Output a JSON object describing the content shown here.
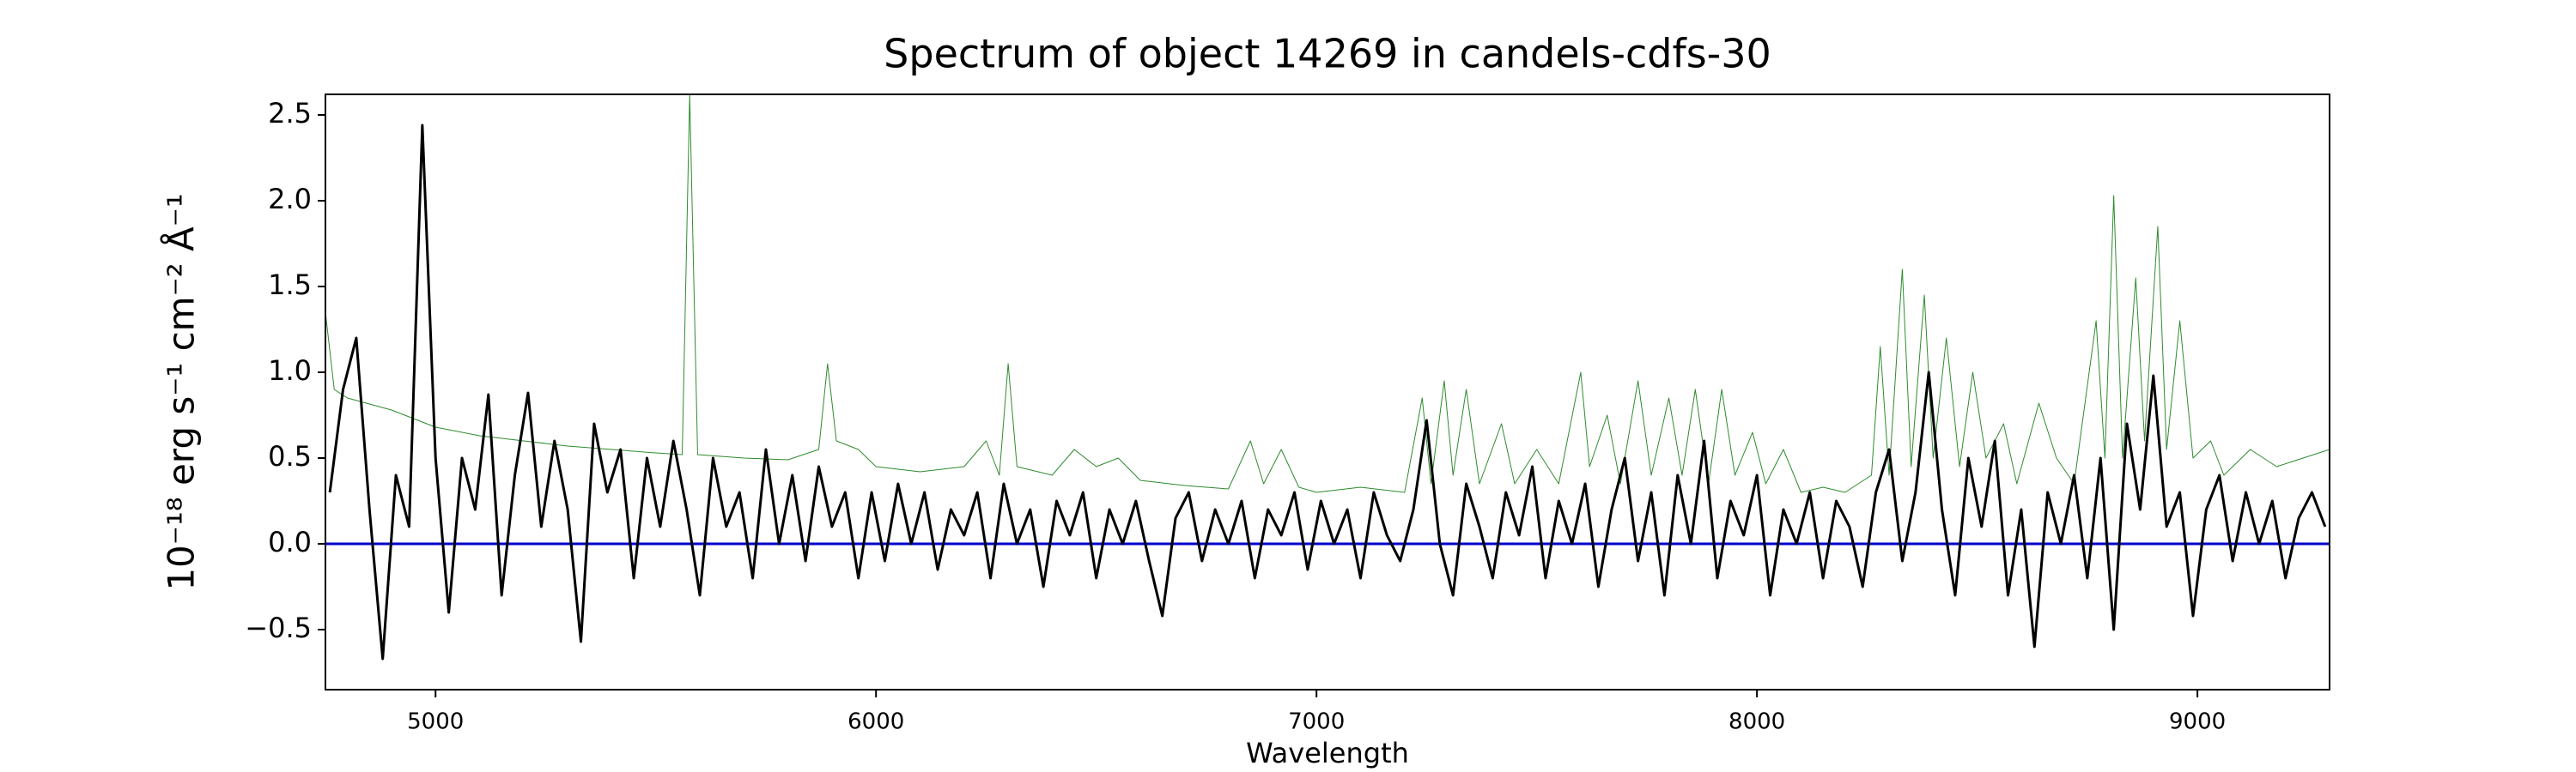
{
  "chart_data": {
    "type": "line",
    "title": "Spectrum of object 14269 in candels-cdfs-30",
    "xlabel": "Wavelength",
    "ylabel": "10⁻¹⁸ erg s⁻¹ cm⁻² Å⁻¹",
    "xlim": [
      4750,
      9300
    ],
    "ylim": [
      -0.85,
      2.62
    ],
    "xticks": [
      5000,
      6000,
      7000,
      8000,
      9000
    ],
    "yticks": [
      {
        "value": -0.5,
        "label": "−0.5"
      },
      {
        "value": 0,
        "label": "0.0"
      },
      {
        "value": 0.5,
        "label": "0.5"
      },
      {
        "value": 1,
        "label": "1.0"
      },
      {
        "value": 1.5,
        "label": "1.5"
      },
      {
        "value": 2,
        "label": "2.0"
      },
      {
        "value": 2.5,
        "label": "2.5"
      }
    ],
    "grid": false,
    "series": [
      {
        "color": "#2e8b2e",
        "width": 1,
        "x": [
          4750,
          4770,
          4800,
          4900,
          5000,
          5100,
          5200,
          5300,
          5400,
          5500,
          5560,
          5577,
          5595,
          5700,
          5800,
          5870,
          5890,
          5910,
          5960,
          6000,
          6100,
          6200,
          6250,
          6280,
          6300,
          6320,
          6400,
          6450,
          6500,
          6550,
          6600,
          6700,
          6800,
          6850,
          6880,
          6920,
          6960,
          7000,
          7100,
          7200,
          7240,
          7260,
          7290,
          7310,
          7340,
          7370,
          7420,
          7450,
          7500,
          7550,
          7600,
          7620,
          7660,
          7690,
          7730,
          7760,
          7800,
          7830,
          7860,
          7890,
          7920,
          7950,
          7990,
          8020,
          8060,
          8100,
          8150,
          8200,
          8260,
          8280,
          8300,
          8330,
          8350,
          8380,
          8400,
          8430,
          8460,
          8490,
          8520,
          8560,
          8590,
          8640,
          8680,
          8720,
          8770,
          8790,
          8810,
          8830,
          8860,
          8880,
          8910,
          8930,
          8960,
          8990,
          9030,
          9060,
          9120,
          9180,
          9240,
          9300
        ],
        "values": [
          1.35,
          0.9,
          0.85,
          0.78,
          0.68,
          0.63,
          0.6,
          0.57,
          0.55,
          0.53,
          0.52,
          2.62,
          0.52,
          0.5,
          0.49,
          0.55,
          1.05,
          0.6,
          0.55,
          0.45,
          0.42,
          0.45,
          0.6,
          0.4,
          1.05,
          0.45,
          0.4,
          0.55,
          0.45,
          0.5,
          0.37,
          0.34,
          0.32,
          0.6,
          0.35,
          0.55,
          0.33,
          0.3,
          0.33,
          0.3,
          0.85,
          0.35,
          0.95,
          0.4,
          0.9,
          0.35,
          0.7,
          0.35,
          0.55,
          0.35,
          1.0,
          0.45,
          0.75,
          0.35,
          0.95,
          0.4,
          0.85,
          0.4,
          0.9,
          0.35,
          0.9,
          0.4,
          0.65,
          0.35,
          0.55,
          0.3,
          0.33,
          0.3,
          0.4,
          1.15,
          0.4,
          1.6,
          0.45,
          1.45,
          0.5,
          1.2,
          0.45,
          1.0,
          0.5,
          0.7,
          0.35,
          0.82,
          0.5,
          0.35,
          1.3,
          0.5,
          2.03,
          0.5,
          1.55,
          0.6,
          1.85,
          0.55,
          1.3,
          0.5,
          0.6,
          0.4,
          0.55,
          0.45,
          0.5,
          0.55
        ]
      },
      {
        "color": "#0000cc",
        "width": 3,
        "x": [
          4750,
          9300
        ],
        "values": [
          0,
          0
        ]
      },
      {
        "color": "#000000",
        "width": 3,
        "x": [
          4760,
          4790,
          4820,
          4850,
          4880,
          4910,
          4940,
          4970,
          5000,
          5030,
          5060,
          5090,
          5120,
          5150,
          5180,
          5210,
          5240,
          5270,
          5300,
          5330,
          5360,
          5390,
          5420,
          5450,
          5480,
          5510,
          5540,
          5570,
          5600,
          5630,
          5660,
          5690,
          5720,
          5750,
          5780,
          5810,
          5840,
          5870,
          5900,
          5930,
          5960,
          5990,
          6020,
          6050,
          6080,
          6110,
          6140,
          6170,
          6200,
          6230,
          6260,
          6290,
          6320,
          6350,
          6380,
          6410,
          6440,
          6470,
          6500,
          6530,
          6560,
          6590,
          6620,
          6650,
          6680,
          6710,
          6740,
          6770,
          6800,
          6830,
          6860,
          6890,
          6920,
          6950,
          6980,
          7010,
          7040,
          7070,
          7100,
          7130,
          7160,
          7190,
          7220,
          7250,
          7280,
          7310,
          7340,
          7370,
          7400,
          7430,
          7460,
          7490,
          7520,
          7550,
          7580,
          7610,
          7640,
          7670,
          7700,
          7730,
          7760,
          7790,
          7820,
          7850,
          7880,
          7910,
          7940,
          7970,
          8000,
          8030,
          8060,
          8090,
          8120,
          8150,
          8180,
          8210,
          8240,
          8270,
          8300,
          8330,
          8360,
          8390,
          8420,
          8450,
          8480,
          8510,
          8540,
          8570,
          8600,
          8630,
          8660,
          8690,
          8720,
          8750,
          8780,
          8810,
          8840,
          8870,
          8900,
          8930,
          8960,
          8990,
          9020,
          9050,
          9080,
          9110,
          9140,
          9170,
          9200,
          9230,
          9260,
          9290
        ],
        "values": [
          0.3,
          0.9,
          1.2,
          0.2,
          -0.67,
          0.4,
          0.1,
          2.44,
          0.5,
          -0.4,
          0.5,
          0.2,
          0.87,
          -0.3,
          0.4,
          0.88,
          0.1,
          0.6,
          0.2,
          -0.57,
          0.7,
          0.3,
          0.55,
          -0.2,
          0.5,
          0.1,
          0.6,
          0.2,
          -0.3,
          0.5,
          0.1,
          0.3,
          -0.2,
          0.55,
          0.0,
          0.4,
          -0.1,
          0.45,
          0.1,
          0.3,
          -0.2,
          0.3,
          -0.1,
          0.35,
          0.0,
          0.3,
          -0.15,
          0.2,
          0.05,
          0.3,
          -0.2,
          0.35,
          0.0,
          0.2,
          -0.25,
          0.25,
          0.05,
          0.3,
          -0.2,
          0.2,
          0.0,
          0.25,
          -0.1,
          -0.42,
          0.15,
          0.3,
          -0.1,
          0.2,
          0.0,
          0.25,
          -0.2,
          0.2,
          0.05,
          0.3,
          -0.15,
          0.25,
          0.0,
          0.2,
          -0.2,
          0.3,
          0.05,
          -0.1,
          0.2,
          0.72,
          0.0,
          -0.3,
          0.35,
          0.1,
          -0.2,
          0.3,
          0.05,
          0.45,
          -0.2,
          0.25,
          0.0,
          0.35,
          -0.25,
          0.2,
          0.5,
          -0.1,
          0.3,
          -0.3,
          0.4,
          0.0,
          0.6,
          -0.2,
          0.25,
          0.05,
          0.4,
          -0.3,
          0.2,
          0.0,
          0.3,
          -0.2,
          0.25,
          0.1,
          -0.25,
          0.3,
          0.55,
          -0.1,
          0.3,
          1.0,
          0.2,
          -0.3,
          0.5,
          0.1,
          0.6,
          -0.3,
          0.2,
          -0.6,
          0.3,
          0.0,
          0.4,
          -0.2,
          0.5,
          -0.5,
          0.7,
          0.2,
          0.98,
          0.1,
          0.3,
          -0.42,
          0.2,
          0.4,
          -0.1,
          0.3,
          0.0,
          0.25,
          -0.2,
          0.15,
          0.3,
          0.1
        ]
      }
    ]
  }
}
